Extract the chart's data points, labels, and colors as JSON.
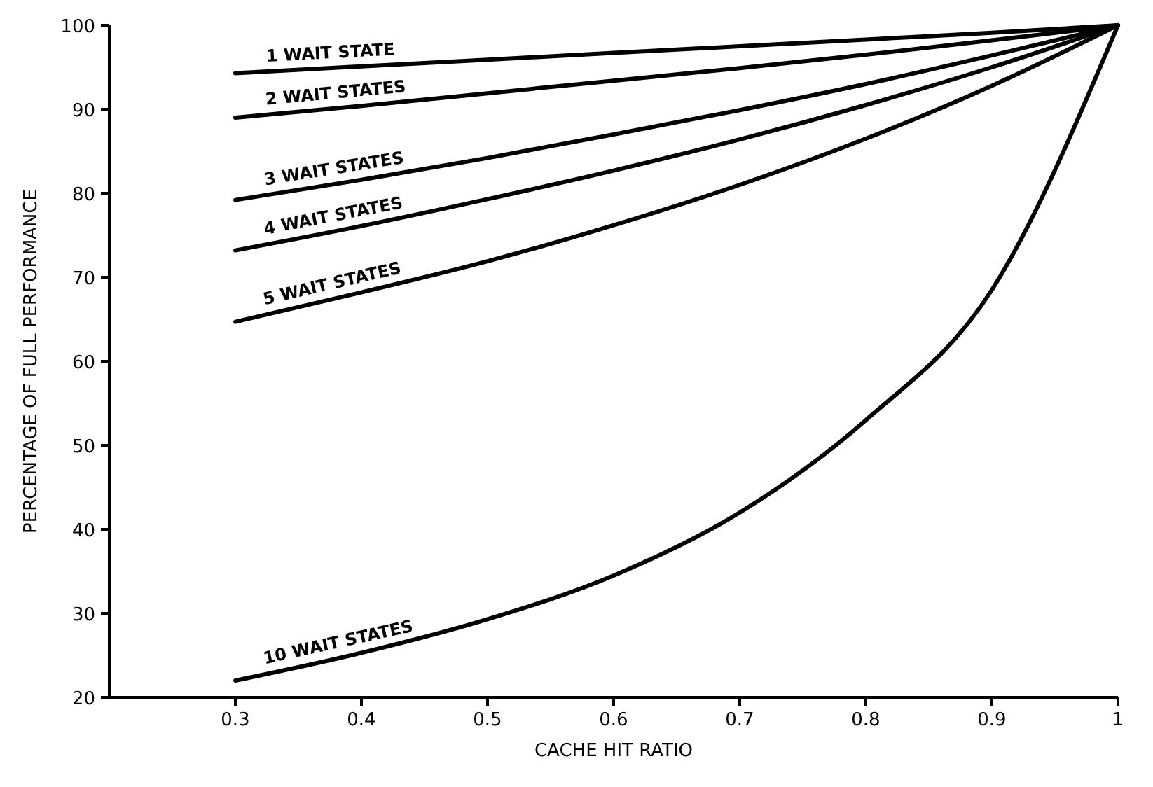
{
  "chart_data": {
    "type": "line",
    "xlabel": "CACHE HIT RATIO",
    "ylabel": "PERCENTAGE OF FULL PERFORMANCE",
    "x": [
      0.3,
      0.4,
      0.5,
      0.6,
      0.7,
      0.8,
      0.9,
      1
    ],
    "xlim": [
      0.2,
      1
    ],
    "xticks": [
      0.3,
      0.4,
      0.5,
      0.6,
      0.7,
      0.8,
      0.9,
      1
    ],
    "ylim": [
      20,
      100
    ],
    "yticks": [
      20,
      30,
      40,
      50,
      60,
      70,
      80,
      90,
      100
    ],
    "grid": false,
    "legend": false,
    "marker": "none",
    "line_style": "solid",
    "series": [
      {
        "name": "1 WAIT STATE",
        "color": "#000000",
        "values": [
          94.3,
          95.1,
          95.9,
          96.7,
          97.5,
          98.3,
          99.1,
          100
        ]
      },
      {
        "name": "2 WAIT STATES",
        "color": "#000000",
        "values": [
          89,
          90.4,
          91.9,
          93.4,
          94.9,
          96.5,
          98.2,
          100
        ]
      },
      {
        "name": "3 WAIT STATES",
        "color": "#000000",
        "values": [
          79.2,
          81.6,
          84.2,
          87,
          89.9,
          93,
          96.4,
          100
        ]
      },
      {
        "name": "4 WAIT STATES",
        "color": "#000000",
        "values": [
          73.2,
          76.1,
          79.3,
          82.7,
          86.4,
          90.5,
          95,
          100
        ]
      },
      {
        "name": "5 WAIT STATES",
        "color": "#000000",
        "values": [
          64.7,
          68.2,
          71.9,
          76.2,
          81,
          86.5,
          92.8,
          100
        ]
      },
      {
        "name": "10 WAIT STATES",
        "color": "#000000",
        "values": [
          22,
          25.3,
          29.3,
          34.5,
          42,
          53,
          68.5,
          100
        ]
      }
    ]
  }
}
